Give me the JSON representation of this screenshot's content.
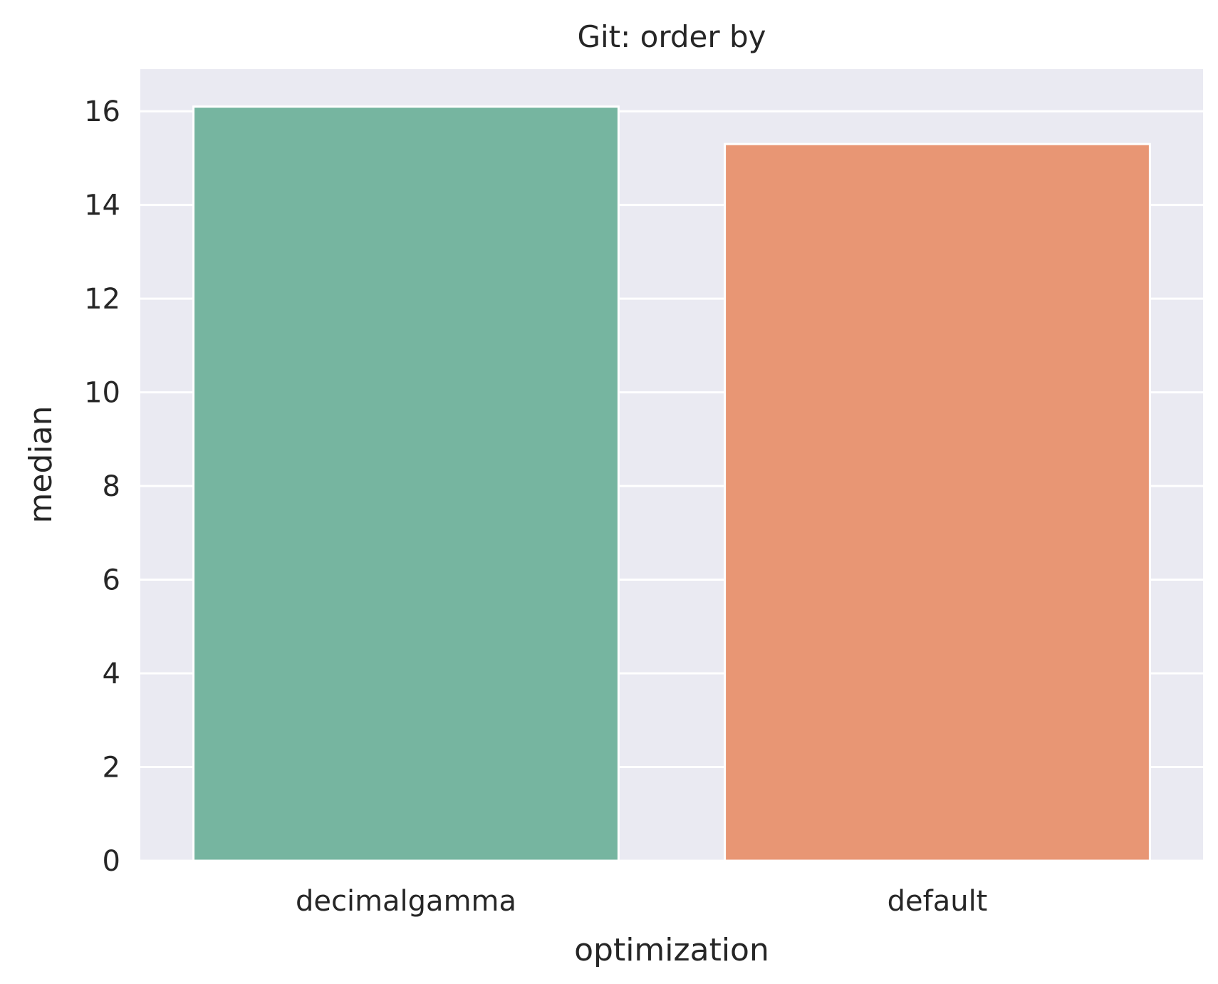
{
  "chart_data": {
    "type": "bar",
    "title": "Git: order by",
    "xlabel": "optimization",
    "ylabel": "median",
    "categories": [
      "decimalgamma",
      "default"
    ],
    "values": [
      16.1,
      15.3
    ],
    "ylim": [
      0,
      16.9
    ],
    "yticks": [
      "0",
      "2",
      "4",
      "6",
      "8",
      "10",
      "12",
      "14",
      "16"
    ],
    "bar_colors": [
      "#76b5a0",
      "#e89674"
    ],
    "plot_background": "#eaeaf2",
    "grid": true,
    "legend": "none"
  }
}
